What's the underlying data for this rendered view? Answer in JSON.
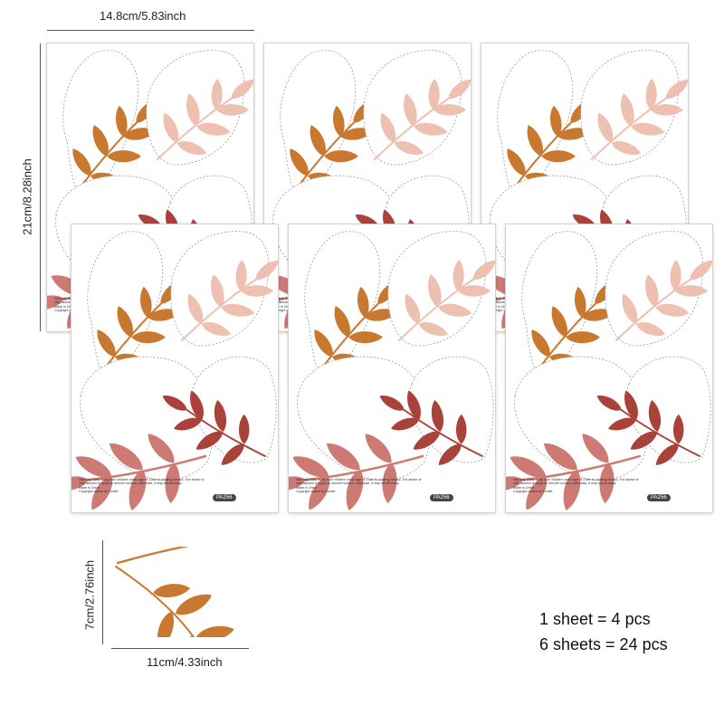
{
  "dimensions": {
    "sheet_width": "14.8cm/5.83inch",
    "sheet_height": "21cm/8.28inch",
    "sticker_width": "11cm/4.33inch",
    "sticker_height": "7cm/2.76inch"
  },
  "sheet": {
    "code": "PA256",
    "fine_print": "Warning: Keep away from children under age of 3 due to choking hazard. The sticker is only allowed to apply on smooth surface, otherwise, it may fall off easily.\nMade in China\nCopyright owned by Funlife"
  },
  "summary": {
    "line1": "1 sheet = 4 pcs",
    "line2": "6 sheets = 24 pcs"
  },
  "colors": {
    "orange": "#C9782F",
    "light_pink": "#EEC0B1",
    "rose": "#CC7A73",
    "rust": "#A9433A"
  }
}
